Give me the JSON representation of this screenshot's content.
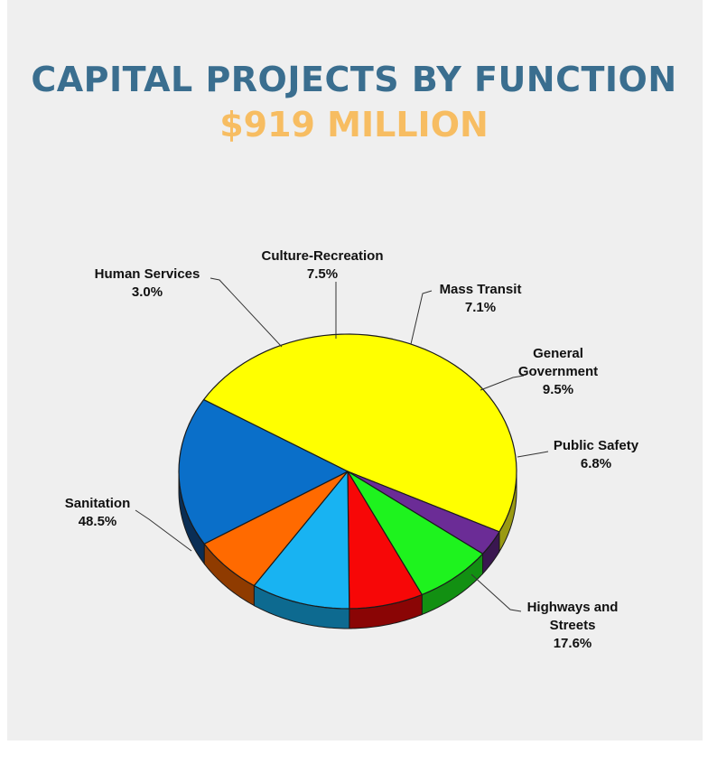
{
  "title": "CAPITAL PROJECTS BY FUNCTION",
  "subtitle": "$919 MILLION",
  "chart_data": {
    "type": "pie",
    "title": "CAPITAL PROJECTS BY FUNCTION",
    "subtitle": "$919 MILLION",
    "slices": [
      {
        "label": "Sanitation",
        "value": 48.5,
        "value_label": "48.5%",
        "color": "#ffff00",
        "side_color": "#9a9a12"
      },
      {
        "label": "Human Services",
        "value": 3.0,
        "value_label": "3.0%",
        "color": "#6b2c96",
        "side_color": "#3a1750"
      },
      {
        "label": "Culture-Recreation",
        "value": 7.5,
        "value_label": "7.5%",
        "color": "#1ef31e",
        "side_color": "#129012"
      },
      {
        "label": "Mass Transit",
        "value": 7.1,
        "value_label": "7.1%",
        "color": "#f70707",
        "side_color": "#8a0505"
      },
      {
        "label": "General Government",
        "value": 9.5,
        "value_label": "9.5%",
        "color": "#18b3f2",
        "side_color": "#0d6a90"
      },
      {
        "label": "Public Safety",
        "value": 6.8,
        "value_label": "6.8%",
        "color": "#ff6a00",
        "side_color": "#8f3b00"
      },
      {
        "label": "Highways and Streets",
        "value": 17.6,
        "value_label": "17.6%",
        "color": "#0a6fc9",
        "side_color": "#0a2e55"
      }
    ]
  }
}
